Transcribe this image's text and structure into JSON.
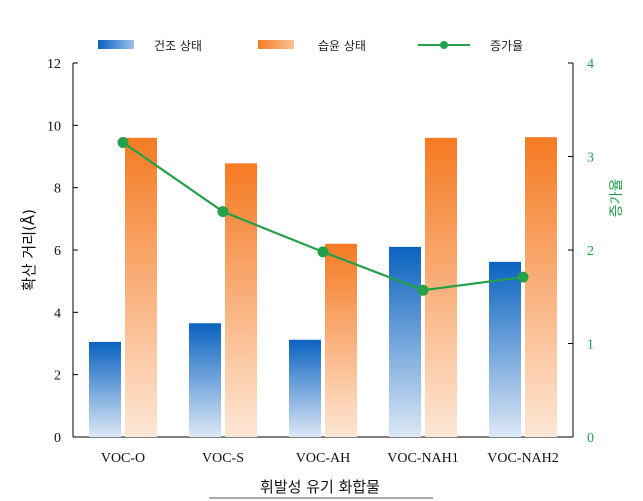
{
  "chart_data": {
    "type": "bar",
    "categories": [
      "VOC-O",
      "VOC-S",
      "VOC-AH",
      "VOC-NAH1",
      "VOC-NAH2"
    ],
    "series": [
      {
        "name": "건조 상태",
        "type": "bar",
        "axis": "left",
        "values": [
          3.05,
          3.65,
          3.12,
          6.1,
          5.62
        ]
      },
      {
        "name": "습윤 상태",
        "type": "bar",
        "axis": "left",
        "values": [
          9.6,
          8.78,
          6.2,
          9.6,
          9.62
        ]
      },
      {
        "name": "증가율",
        "type": "line",
        "axis": "right",
        "values": [
          3.15,
          2.41,
          1.98,
          1.57,
          1.71
        ]
      }
    ],
    "xlabel": "휘발성 유기 화합물",
    "ylabel": "확산 거리(Å)",
    "y2label": "증가율",
    "ylim": [
      0,
      12
    ],
    "y2lim": [
      0,
      4
    ],
    "yticks": [
      "0",
      "2",
      "4",
      "6",
      "8",
      "10",
      "12"
    ],
    "y2ticks": [
      "0",
      "1",
      "2",
      "3",
      "4"
    ],
    "grid": false,
    "legend_position": "top",
    "colors": {
      "dry_top": "#0a62c0",
      "dry_bottom": "#dce8f6",
      "wet_top": "#f57a22",
      "wet_bottom": "#fde7d5",
      "ratio_line": "#22a04a",
      "right_axis": "#22a04a",
      "axis": "#000000"
    }
  }
}
